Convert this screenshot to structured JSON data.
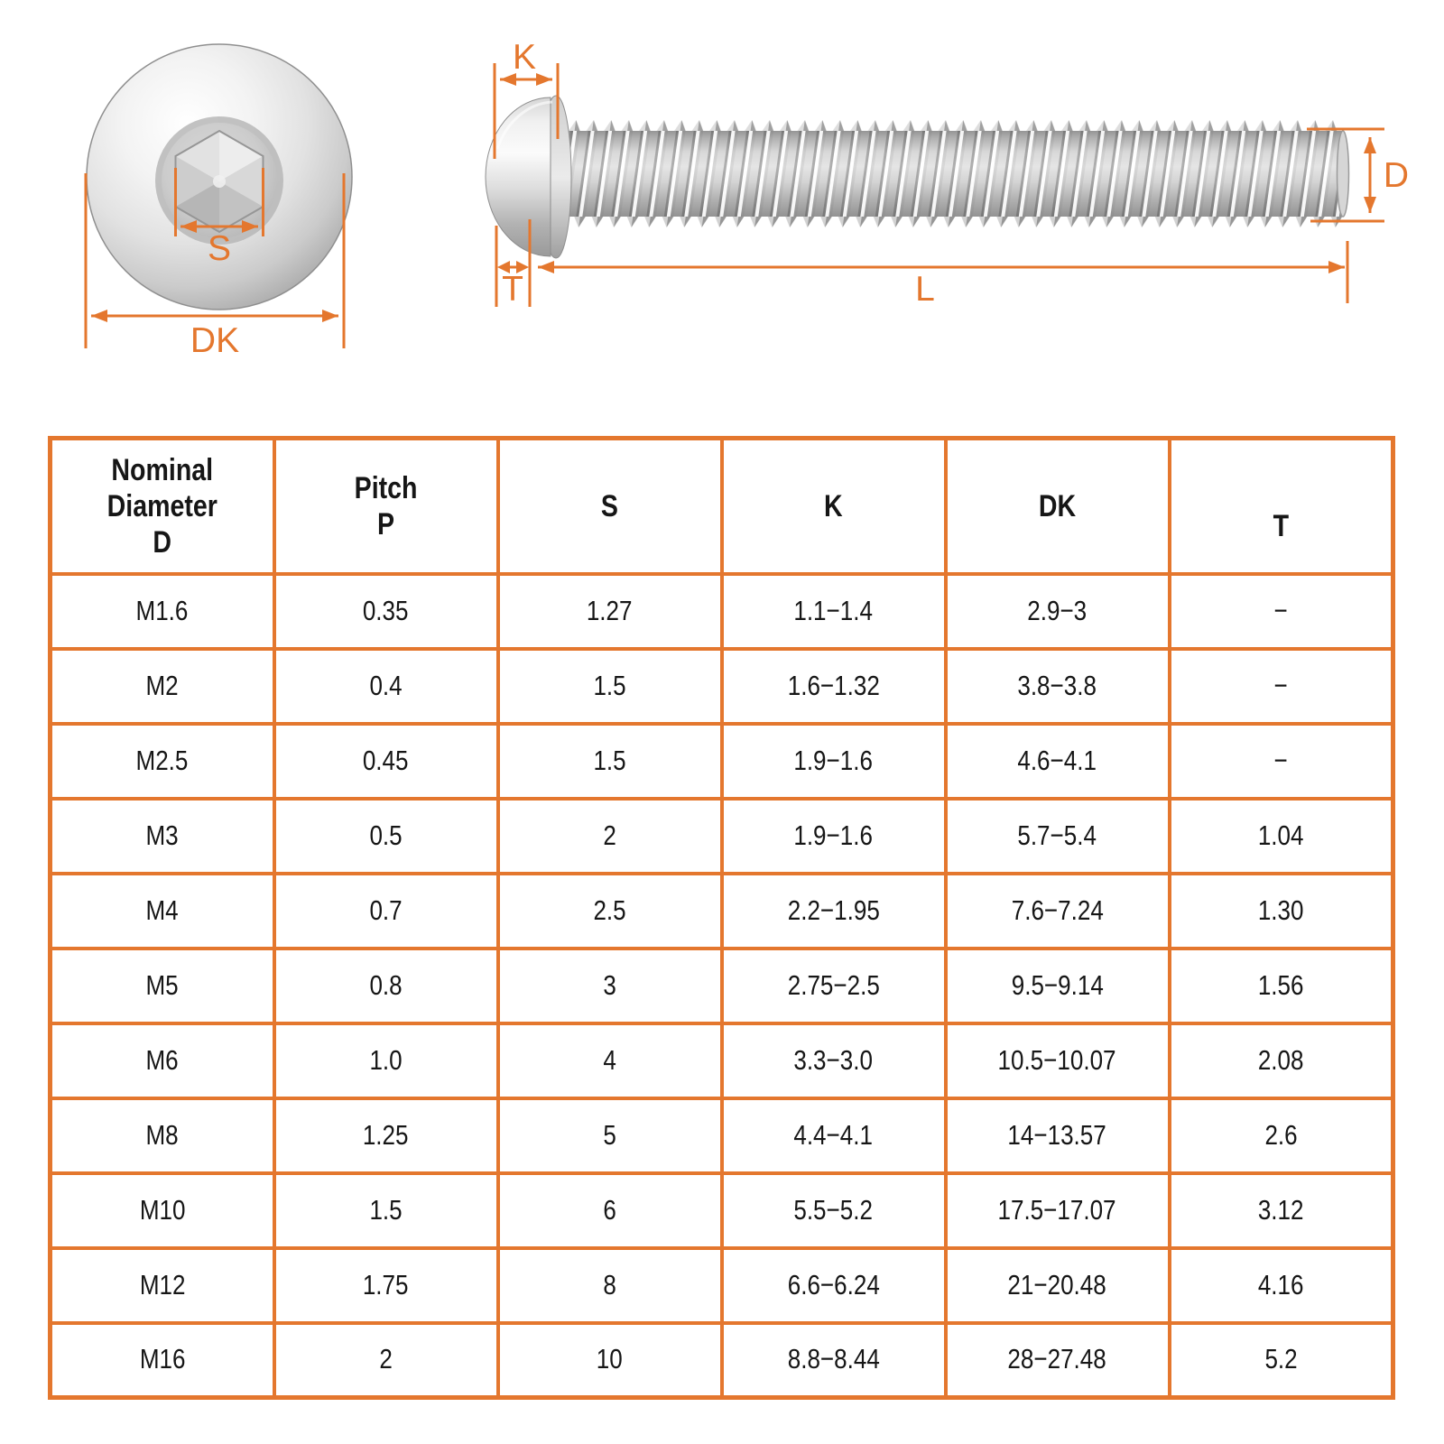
{
  "colors": {
    "accent": "#E4772E",
    "table_border": "#E4772E",
    "text": "#161616"
  },
  "top_view": {
    "s_label": "S",
    "dk_label": "DK"
  },
  "side_view": {
    "k_label": "K",
    "d_label": "D",
    "t_label": "T",
    "l_label": "L"
  },
  "table": {
    "headers": [
      "Nominal\nDiameter\nD",
      "Pitch\nP",
      "S",
      "K",
      "DK",
      "T"
    ],
    "rows": [
      [
        "M1.6",
        "0.35",
        "1.27",
        "1.1−1.4",
        "2.9−3",
        "−"
      ],
      [
        "M2",
        "0.4",
        "1.5",
        "1.6−1.32",
        "3.8−3.8",
        "−"
      ],
      [
        "M2.5",
        "0.45",
        "1.5",
        "1.9−1.6",
        "4.6−4.1",
        "−"
      ],
      [
        "M3",
        "0.5",
        "2",
        "1.9−1.6",
        "5.7−5.4",
        "1.04"
      ],
      [
        "M4",
        "0.7",
        "2.5",
        "2.2−1.95",
        "7.6−7.24",
        "1.30"
      ],
      [
        "M5",
        "0.8",
        "3",
        "2.75−2.5",
        "9.5−9.14",
        "1.56"
      ],
      [
        "M6",
        "1.0",
        "4",
        "3.3−3.0",
        "10.5−10.07",
        "2.08"
      ],
      [
        "M8",
        "1.25",
        "5",
        "4.4−4.1",
        "14−13.57",
        "2.6"
      ],
      [
        "M10",
        "1.5",
        "6",
        "5.5−5.2",
        "17.5−17.07",
        "3.12"
      ],
      [
        "M12",
        "1.75",
        "8",
        "6.6−6.24",
        "21−20.48",
        "4.16"
      ],
      [
        "M16",
        "2",
        "10",
        "8.8−8.44",
        "28−27.48",
        "5.2"
      ]
    ]
  }
}
